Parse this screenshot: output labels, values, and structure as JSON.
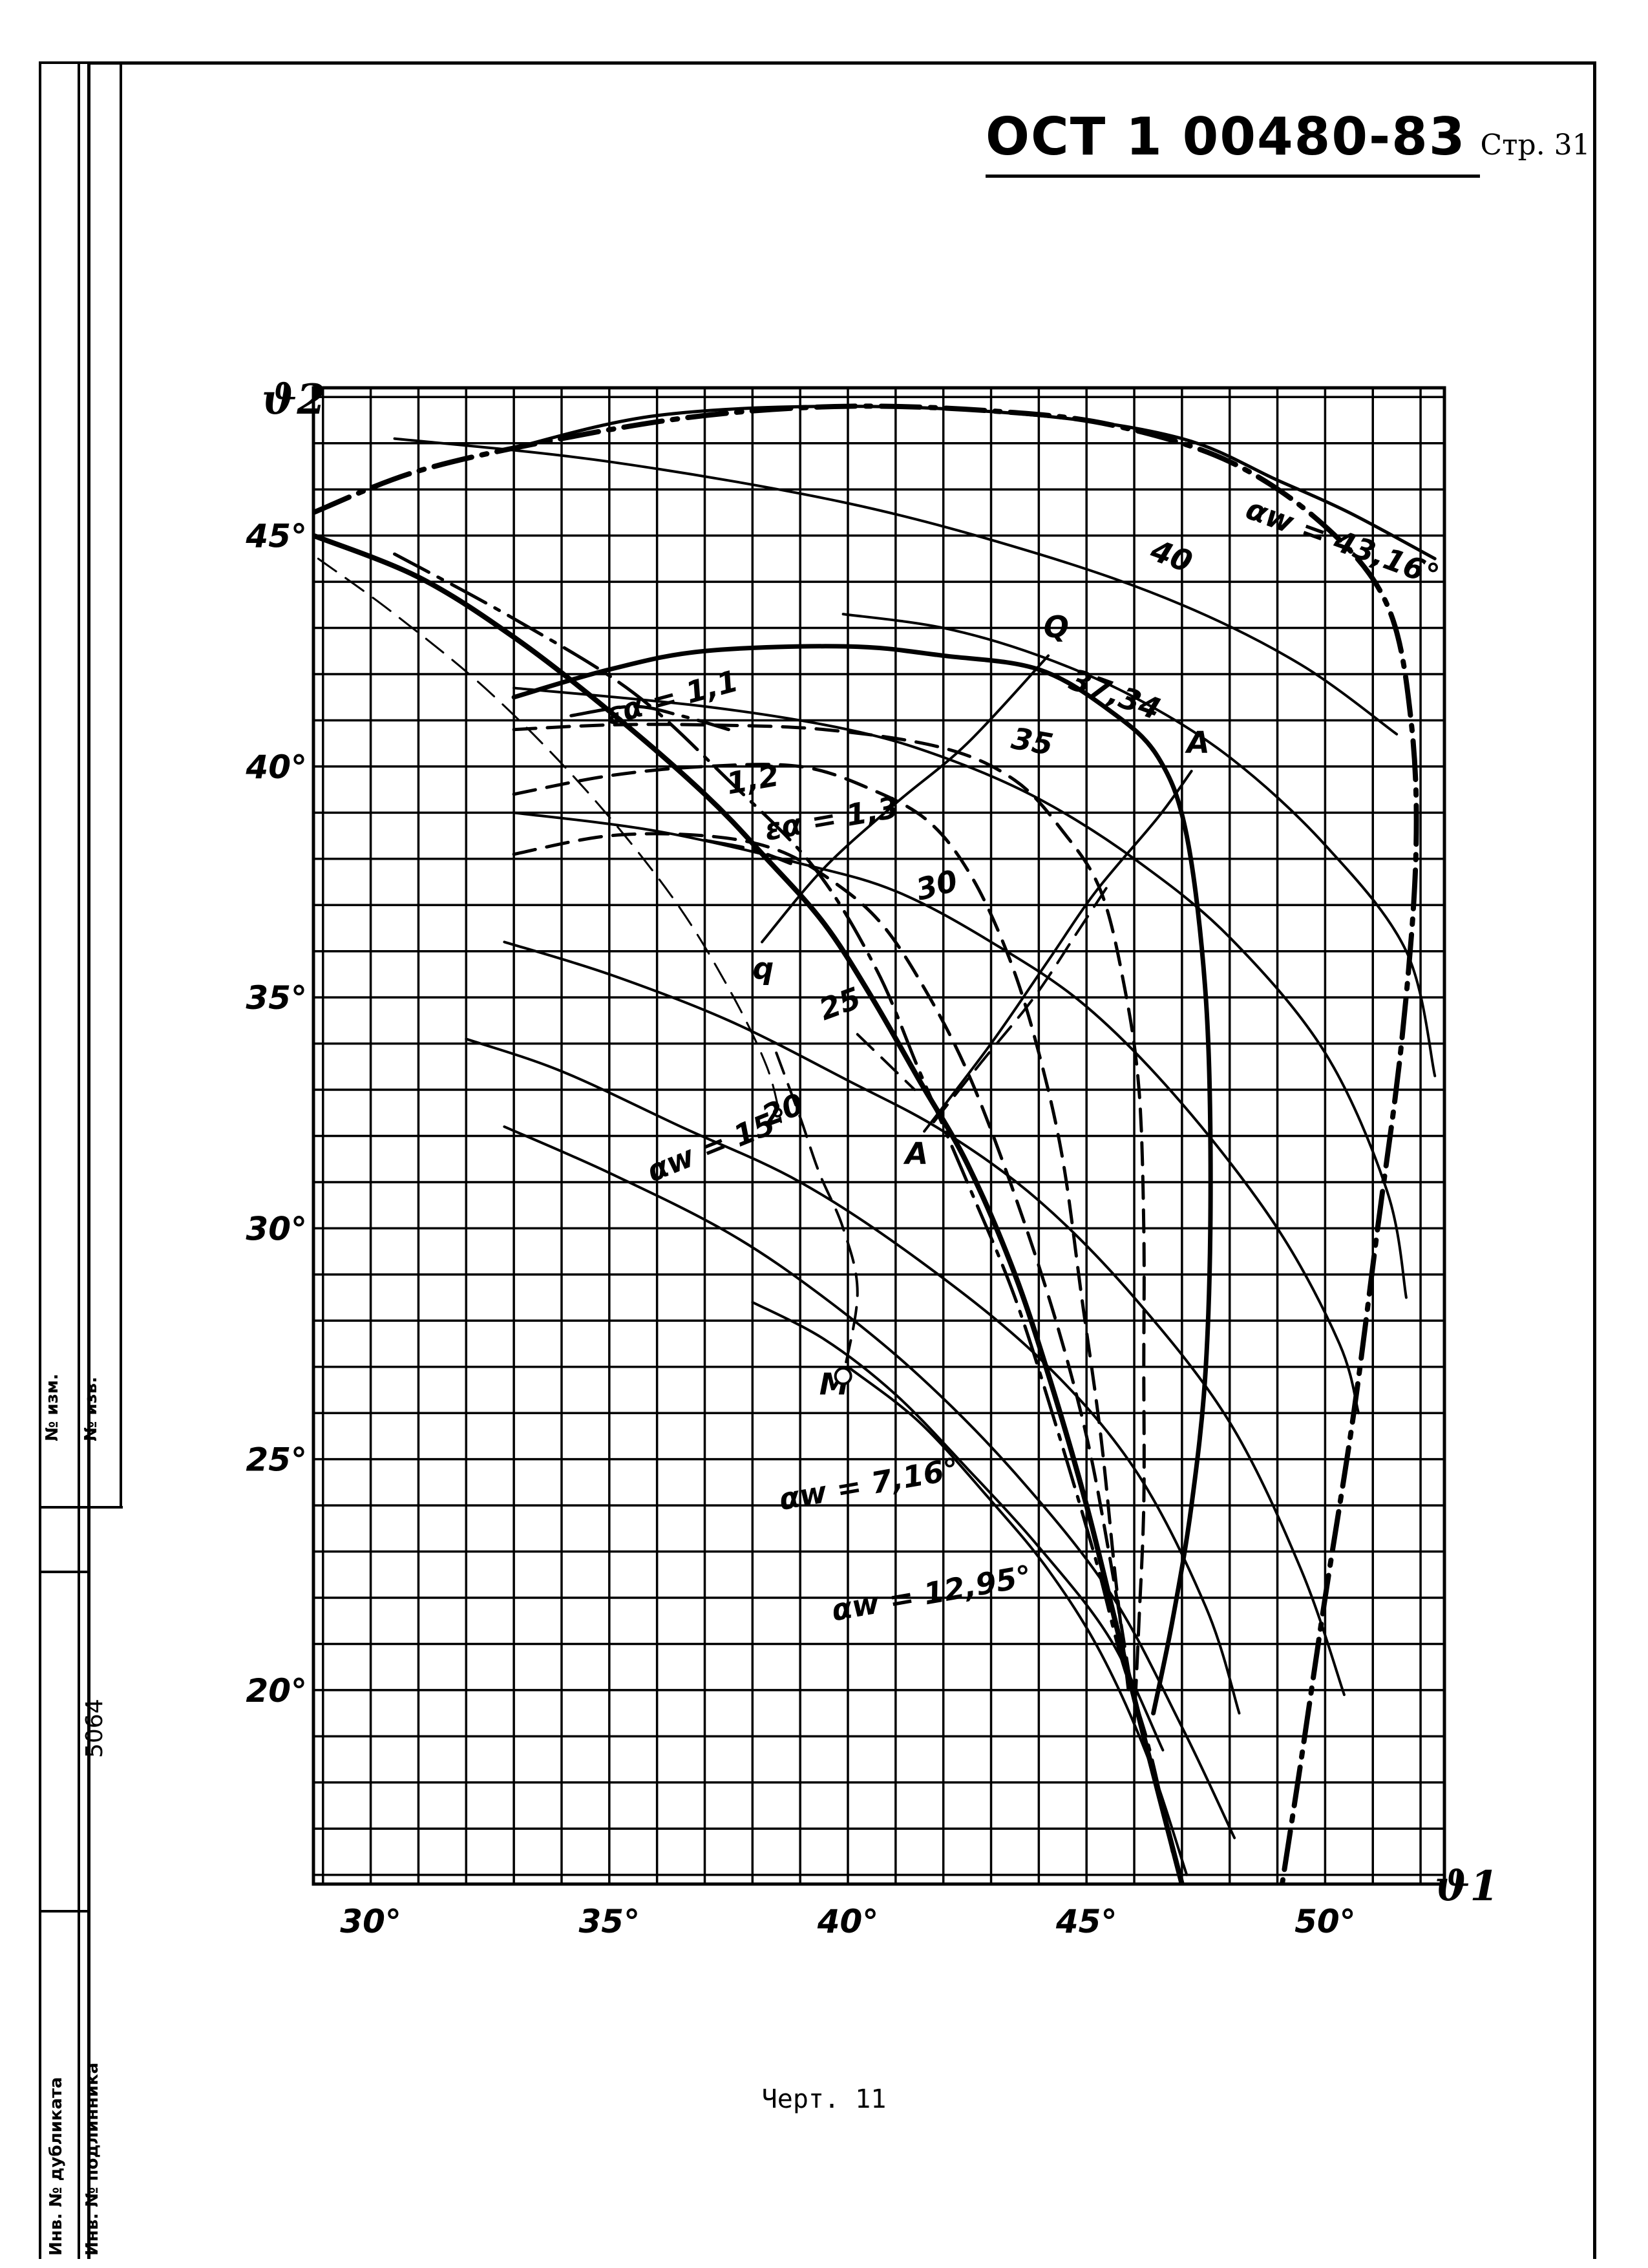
{
  "header": {
    "doc_code": "ОСТ 1 00480-83",
    "page_label": "Стр. 31"
  },
  "sidebar": {
    "rev_no": "№ изм.",
    "notice_no": "№ изв.",
    "duplicate_inv": "Инв. № дубликата",
    "original_inv": "Инв. № подлинника",
    "inv_number": "5064"
  },
  "caption": "Черт. 11",
  "chart_data": {
    "type": "line",
    "xlabel": "ϑ1",
    "ylabel": "ϑ2",
    "xlim": [
      28.8,
      52.5
    ],
    "ylim": [
      15.8,
      48.2
    ],
    "grid": true,
    "x_ticks": [
      {
        "value": 30,
        "label": "30°"
      },
      {
        "value": 35,
        "label": "35°"
      },
      {
        "value": 40,
        "label": "40°"
      },
      {
        "value": 45,
        "label": "45°"
      },
      {
        "value": 50,
        "label": "50°"
      }
    ],
    "y_ticks": [
      {
        "value": 20,
        "label": "20°"
      },
      {
        "value": 25,
        "label": "25°"
      },
      {
        "value": 30,
        "label": "30°"
      },
      {
        "value": 35,
        "label": "35°"
      },
      {
        "value": 40,
        "label": "40°"
      },
      {
        "value": 45,
        "label": "45°"
      }
    ],
    "series": [
      {
        "id": "alpha-43-boundary",
        "style": "dashdot",
        "width": 8,
        "points": [
          [
            28.8,
            45.5
          ],
          [
            31,
            46.4
          ],
          [
            34,
            47.1
          ],
          [
            37,
            47.6
          ],
          [
            40,
            47.8
          ],
          [
            43,
            47.7
          ],
          [
            45.5,
            47.4
          ],
          [
            48,
            46.6
          ],
          [
            50,
            45.2
          ],
          [
            51.3,
            43.5
          ],
          [
            51.8,
            41
          ],
          [
            51.9,
            38
          ],
          [
            51.6,
            34
          ],
          [
            51.1,
            30
          ],
          [
            50.6,
            26
          ],
          [
            50,
            22
          ],
          [
            49.5,
            18.5
          ],
          [
            49.1,
            15.8
          ]
        ]
      },
      {
        "id": "alpha-43-line",
        "style": "solid",
        "width": 5,
        "points": [
          [
            33,
            46.9
          ],
          [
            36,
            47.6
          ],
          [
            40,
            47.8
          ],
          [
            44,
            47.6
          ],
          [
            47,
            47.1
          ],
          [
            49,
            46.2
          ],
          [
            50.5,
            45.5
          ],
          [
            52.3,
            44.5
          ]
        ]
      },
      {
        "id": "eps-40",
        "style": "solid",
        "width": 4,
        "points": [
          [
            30.5,
            47.1
          ],
          [
            35,
            46.6
          ],
          [
            40,
            45.7
          ],
          [
            44,
            44.6
          ],
          [
            47,
            43.5
          ],
          [
            49.5,
            42.2
          ],
          [
            51.5,
            40.7
          ]
        ]
      },
      {
        "id": "eps-37",
        "style": "solid",
        "width": 4,
        "points": [
          [
            39.9,
            43.3
          ],
          [
            42,
            43
          ],
          [
            44,
            42.4
          ],
          [
            46,
            41.5
          ],
          [
            48,
            40.2
          ],
          [
            50,
            38.3
          ],
          [
            51.7,
            36
          ],
          [
            52.3,
            33.3
          ]
        ]
      },
      {
        "id": "eps-35",
        "style": "solid",
        "width": 4,
        "points": [
          [
            33,
            41.7
          ],
          [
            37,
            41.3
          ],
          [
            40,
            40.8
          ],
          [
            42,
            40.2
          ],
          [
            44,
            39.3
          ],
          [
            46,
            38
          ],
          [
            48,
            36.3
          ],
          [
            50,
            33.8
          ],
          [
            51.3,
            30.8
          ],
          [
            51.7,
            28.5
          ]
        ]
      },
      {
        "id": "eps-30",
        "style": "solid",
        "width": 4,
        "points": [
          [
            33,
            39
          ],
          [
            36,
            38.6
          ],
          [
            39,
            37.9
          ],
          [
            41,
            37.3
          ],
          [
            43,
            36.2
          ],
          [
            45,
            34.8
          ],
          [
            47,
            32.7
          ],
          [
            49,
            30
          ],
          [
            50.3,
            27.5
          ],
          [
            50.7,
            26
          ]
        ]
      },
      {
        "id": "eps-25",
        "style": "solid",
        "width": 4,
        "points": [
          [
            32.8,
            36.2
          ],
          [
            35,
            35.5
          ],
          [
            37.5,
            34.5
          ],
          [
            40,
            33.2
          ],
          [
            42,
            32.1
          ],
          [
            44,
            30.6
          ],
          [
            46,
            28.5
          ],
          [
            48,
            25.8
          ],
          [
            49.5,
            22.6
          ],
          [
            50.4,
            19.9
          ]
        ]
      },
      {
        "id": "eps-20",
        "style": "solid",
        "width": 4,
        "points": [
          [
            32,
            34.1
          ],
          [
            34,
            33.4
          ],
          [
            36.5,
            32.2
          ],
          [
            39,
            31
          ],
          [
            41.5,
            29.3
          ],
          [
            44,
            27.2
          ],
          [
            46,
            24.8
          ],
          [
            47.5,
            21.8
          ],
          [
            48.2,
            19.5
          ]
        ]
      },
      {
        "id": "alpha-15",
        "style": "solid",
        "width": 4,
        "points": [
          [
            32.8,
            32.2
          ],
          [
            35,
            31.2
          ],
          [
            37.5,
            29.9
          ],
          [
            39.5,
            28.5
          ],
          [
            41.5,
            26.8
          ],
          [
            43.5,
            24.7
          ],
          [
            45.5,
            22.1
          ],
          [
            47,
            19.2
          ],
          [
            48.1,
            16.8
          ]
        ]
      },
      {
        "id": "alpha-7",
        "style": "solid",
        "width": 4,
        "points": [
          [
            38,
            28.4
          ],
          [
            39.5,
            27.6
          ],
          [
            41,
            26.4
          ],
          [
            42.5,
            24.8
          ],
          [
            44,
            23.1
          ],
          [
            45.5,
            21.1
          ],
          [
            46.6,
            18.7
          ]
        ]
      },
      {
        "id": "alpha-12",
        "style": "solid",
        "width": 4,
        "points": [
          [
            40,
            27
          ],
          [
            41.5,
            25.8
          ],
          [
            43,
            24.1
          ],
          [
            44.2,
            22.6
          ],
          [
            45.3,
            20.8
          ],
          [
            46.3,
            18.5
          ],
          [
            47.1,
            16
          ]
        ]
      },
      {
        "id": "thick-left",
        "style": "solid",
        "width": 8,
        "points": [
          [
            28.8,
            45
          ],
          [
            31,
            44.1
          ],
          [
            33,
            42.8
          ],
          [
            35,
            41.2
          ],
          [
            37,
            39.4
          ],
          [
            38.3,
            38
          ],
          [
            39.5,
            36.6
          ],
          [
            40.5,
            35
          ],
          [
            41.5,
            33.2
          ],
          [
            42.5,
            31.4
          ],
          [
            43.5,
            29
          ],
          [
            44.3,
            26.5
          ],
          [
            45,
            24
          ],
          [
            45.6,
            21.5
          ],
          [
            46.2,
            19
          ],
          [
            47,
            15.8
          ]
        ]
      },
      {
        "id": "dashdot-left",
        "style": "dashdot",
        "width": 5,
        "points": [
          [
            30.5,
            44.6
          ],
          [
            33,
            43.2
          ],
          [
            35.5,
            41.6
          ],
          [
            37.5,
            39.7
          ],
          [
            39.3,
            37.8
          ],
          [
            40.6,
            35.6
          ],
          [
            41.5,
            33.4
          ],
          [
            42.5,
            31
          ],
          [
            43.5,
            28.5
          ],
          [
            44.4,
            25.6
          ],
          [
            45.2,
            22.8
          ],
          [
            45.7,
            20.8
          ],
          [
            46.3,
            18.8
          ],
          [
            46.8,
            16.5
          ]
        ]
      },
      {
        "id": "thin-dashed-upper",
        "style": "dashed",
        "width": 3,
        "points": [
          [
            28.9,
            44.5
          ],
          [
            30.5,
            43.3
          ],
          [
            32.5,
            41.6
          ],
          [
            34.5,
            39.5
          ],
          [
            36.3,
            37.2
          ],
          [
            37.5,
            35.2
          ],
          [
            38.3,
            33.5
          ],
          [
            38.6,
            32.3
          ]
        ]
      },
      {
        "id": "boundary-Qq",
        "style": "solid",
        "width": 7,
        "points": [
          [
            33,
            41.5
          ],
          [
            35,
            42.1
          ],
          [
            37,
            42.5
          ],
          [
            40,
            42.6
          ],
          [
            42,
            42.4
          ],
          [
            44,
            42.1
          ],
          [
            45.5,
            41.2
          ],
          [
            46.5,
            40.2
          ],
          [
            47.1,
            38.5
          ],
          [
            47.5,
            35
          ],
          [
            47.6,
            31
          ],
          [
            47.5,
            27
          ],
          [
            47.2,
            24
          ],
          [
            46.8,
            21.5
          ],
          [
            46.4,
            19.5
          ]
        ]
      },
      {
        "id": "dashed-1-1",
        "style": "dashed",
        "width": 5,
        "points": [
          [
            33,
            40.8
          ],
          [
            35,
            40.9
          ],
          [
            37,
            40.9
          ],
          [
            39.5,
            40.8
          ],
          [
            42,
            40.4
          ],
          [
            43.5,
            39.7
          ],
          [
            44.5,
            38.6
          ],
          [
            45.3,
            37.3
          ],
          [
            45.8,
            35.2
          ],
          [
            46.1,
            33
          ],
          [
            46.2,
            30
          ],
          [
            46.2,
            27
          ],
          [
            46.2,
            24
          ],
          [
            46.1,
            21.5
          ],
          [
            46,
            19.3
          ]
        ]
      },
      {
        "id": "dashed-1-2",
        "style": "dashed",
        "width": 5,
        "points": [
          [
            33,
            39.4
          ],
          [
            35,
            39.8
          ],
          [
            37,
            40
          ],
          [
            39,
            40
          ],
          [
            40.5,
            39.5
          ],
          [
            41.7,
            38.8
          ],
          [
            42.6,
            37.6
          ],
          [
            43.4,
            35.8
          ],
          [
            44,
            33.8
          ],
          [
            44.5,
            31.5
          ],
          [
            44.9,
            28.5
          ],
          [
            45.3,
            25.5
          ],
          [
            45.6,
            22.5
          ],
          [
            45.9,
            19.8
          ]
        ]
      },
      {
        "id": "dashed-1-3",
        "style": "dashed",
        "width": 5,
        "points": [
          [
            33,
            38.1
          ],
          [
            35,
            38.5
          ],
          [
            37,
            38.5
          ],
          [
            38.5,
            38.2
          ],
          [
            39.7,
            37.5
          ],
          [
            40.7,
            36.6
          ],
          [
            41.6,
            35.2
          ],
          [
            42.5,
            33.4
          ],
          [
            43.4,
            31
          ],
          [
            44.3,
            28.2
          ],
          [
            45,
            25.5
          ],
          [
            45.5,
            22.8
          ],
          [
            45.9,
            20.3
          ]
        ]
      },
      {
        "id": "dashdot-small-1",
        "style": "dashdot",
        "width": 5,
        "points": [
          [
            34.2,
            41.1
          ],
          [
            35.5,
            41.3
          ],
          [
            36.5,
            41.1
          ],
          [
            37.5,
            40.8
          ]
        ]
      },
      {
        "id": "dashdot-small-2",
        "style": "dashdot",
        "width": 5,
        "points": [
          [
            37,
            38.4
          ],
          [
            38,
            38.2
          ],
          [
            38.8,
            37.9
          ]
        ]
      },
      {
        "id": "rhombus-AA",
        "style": "solid",
        "width": 4,
        "points": [
          [
            41.6,
            32.1
          ],
          [
            43,
            34
          ],
          [
            44.2,
            35.8
          ],
          [
            45.2,
            37.3
          ],
          [
            46.5,
            38.9
          ],
          [
            47.2,
            39.9
          ]
        ]
      },
      {
        "id": "ray-Qq",
        "style": "solid",
        "width": 4,
        "points": [
          [
            38.2,
            36.2
          ],
          [
            39.5,
            37.8
          ],
          [
            41,
            39.2
          ],
          [
            42.5,
            40.5
          ],
          [
            44.2,
            42.4
          ]
        ]
      },
      {
        "id": "ray-A-lower",
        "style": "dashed",
        "width": 4,
        "points": [
          [
            41.8,
            32.3
          ],
          [
            42.8,
            33.6
          ],
          [
            43.9,
            35
          ],
          [
            44.8,
            36.4
          ],
          [
            45.5,
            37.5
          ]
        ]
      },
      {
        "id": "ray-A-left",
        "style": "dashed",
        "width": 4,
        "points": [
          [
            40.2,
            34.2
          ],
          [
            41.4,
            33
          ]
        ]
      },
      {
        "id": "curve-M",
        "style": "dashed",
        "width": 4,
        "points": [
          [
            38.5,
            33.8
          ],
          [
            39,
            32.4
          ],
          [
            39.4,
            31.2
          ],
          [
            39.9,
            30
          ],
          [
            40.2,
            28.6
          ],
          [
            39.9,
            26.8
          ]
        ]
      }
    ],
    "annotations": [
      {
        "text": "αw = 43,16°",
        "x": 48.3,
        "y": 45.4,
        "angle": 20
      },
      {
        "text": "40",
        "x": 46.3,
        "y": 44.5,
        "angle": 20
      },
      {
        "text": "Q",
        "x": 44.1,
        "y": 42.8,
        "angle": 0
      },
      {
        "text": "37,34",
        "x": 44.6,
        "y": 41.7,
        "angle": 20
      },
      {
        "text": "35",
        "x": 43.4,
        "y": 40.4,
        "angle": 10
      },
      {
        "text": "εα = 1,1",
        "x": 35,
        "y": 40.9,
        "angle": -15
      },
      {
        "text": "1,2",
        "x": 37.5,
        "y": 39.4,
        "angle": -10
      },
      {
        "text": "εα = 1,3",
        "x": 38.3,
        "y": 38.4,
        "angle": -10
      },
      {
        "text": "A",
        "x": 47.1,
        "y": 40.3,
        "angle": 0
      },
      {
        "text": "30",
        "x": 41.5,
        "y": 37.1,
        "angle": -15
      },
      {
        "text": "q",
        "x": 38,
        "y": 35.4,
        "angle": 0
      },
      {
        "text": "25",
        "x": 39.5,
        "y": 34.5,
        "angle": -20
      },
      {
        "text": "20",
        "x": 38.3,
        "y": 32.2,
        "angle": -20
      },
      {
        "text": "A",
        "x": 41.2,
        "y": 31.4,
        "angle": 0
      },
      {
        "text": "αw = 15°",
        "x": 35.9,
        "y": 31,
        "angle": -22
      },
      {
        "text": "M",
        "x": 39.4,
        "y": 26.4,
        "angle": 0
      },
      {
        "text": "αw = 7,16°",
        "x": 38.6,
        "y": 23.9,
        "angle": -10
      },
      {
        "text": "αw = 12,95°",
        "x": 39.7,
        "y": 21.5,
        "angle": -10
      }
    ]
  }
}
